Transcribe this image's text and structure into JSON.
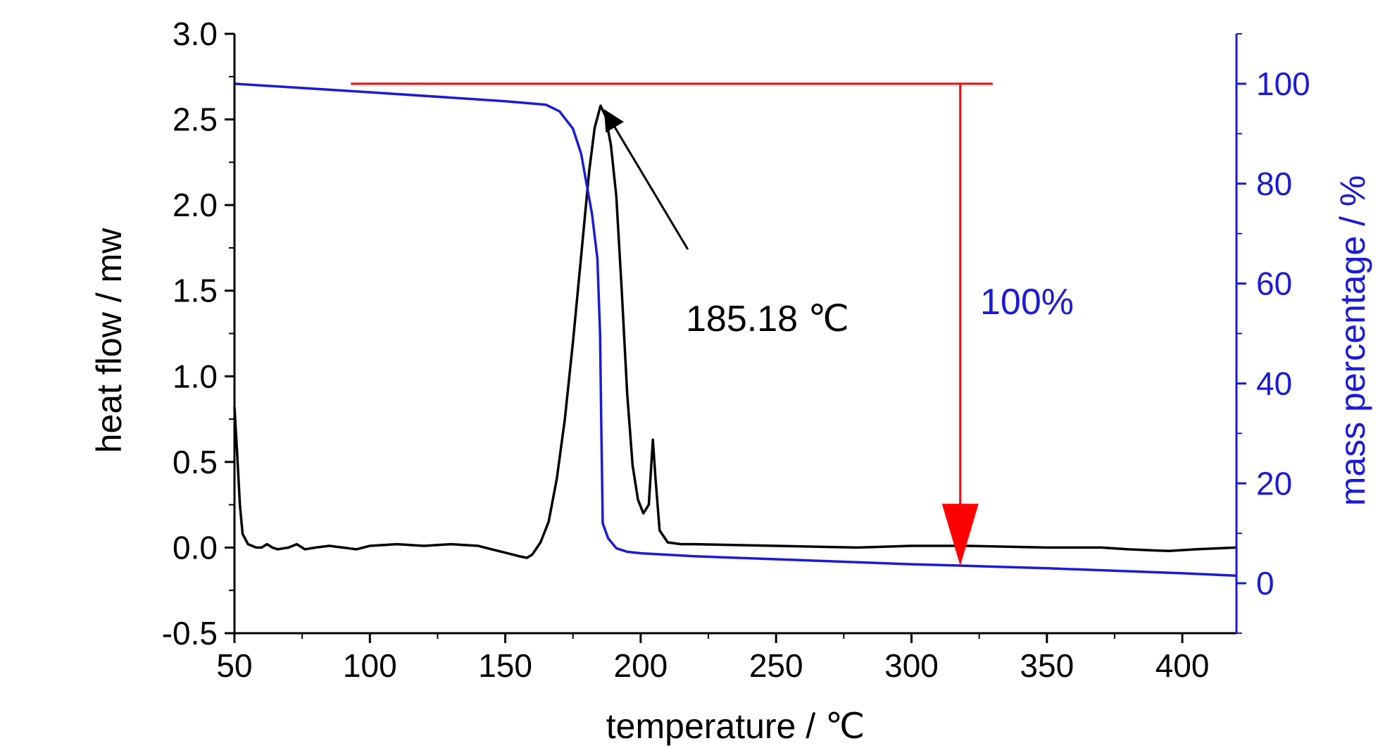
{
  "chart_data": {
    "type": "line",
    "xlabel": "temperature /  ℃",
    "ylabel": "heat flow / mw",
    "y2label": "mass percentage / %",
    "xlim": [
      50,
      420
    ],
    "ylim": [
      -0.5,
      3.0
    ],
    "y2lim": [
      -10,
      110
    ],
    "x_ticks": [
      50,
      100,
      150,
      200,
      250,
      300,
      350,
      400
    ],
    "x_tick_labels": [
      "50",
      "100",
      "150",
      "200",
      "250",
      "300",
      "350",
      "400"
    ],
    "y_ticks": [
      -0.5,
      0.0,
      0.5,
      1.0,
      1.5,
      2.0,
      2.5,
      3.0
    ],
    "y_tick_labels": [
      "-0.5",
      "0.0",
      "0.5",
      "1.0",
      "1.5",
      "2.0",
      "2.5",
      "3.0"
    ],
    "y2_ticks": [
      0,
      20,
      40,
      60,
      80,
      100
    ],
    "y2_tick_labels": [
      "0",
      "20",
      "40",
      "60",
      "80",
      "100"
    ],
    "grid": false,
    "series": [
      {
        "axis": "left",
        "color": "#000000",
        "points": [
          [
            50,
            0.82
          ],
          [
            51,
            0.55
          ],
          [
            52,
            0.25
          ],
          [
            53,
            0.08
          ],
          [
            55,
            0.02
          ],
          [
            58,
            0.0
          ],
          [
            60,
            0.0
          ],
          [
            62,
            0.02
          ],
          [
            64,
            0.0
          ],
          [
            66,
            -0.01
          ],
          [
            70,
            0.0
          ],
          [
            73,
            0.02
          ],
          [
            76,
            -0.01
          ],
          [
            80,
            0.0
          ],
          [
            85,
            0.01
          ],
          [
            90,
            0.0
          ],
          [
            95,
            -0.01
          ],
          [
            100,
            0.01
          ],
          [
            110,
            0.02
          ],
          [
            120,
            0.01
          ],
          [
            130,
            0.02
          ],
          [
            140,
            0.01
          ],
          [
            145,
            -0.01
          ],
          [
            150,
            -0.03
          ],
          [
            155,
            -0.05
          ],
          [
            158,
            -0.06
          ],
          [
            160,
            -0.04
          ],
          [
            163,
            0.03
          ],
          [
            166,
            0.15
          ],
          [
            169,
            0.4
          ],
          [
            172,
            0.75
          ],
          [
            175,
            1.2
          ],
          [
            178,
            1.7
          ],
          [
            181,
            2.2
          ],
          [
            183,
            2.45
          ],
          [
            185.18,
            2.58
          ],
          [
            187,
            2.52
          ],
          [
            189,
            2.35
          ],
          [
            191,
            2.05
          ],
          [
            193,
            1.5
          ],
          [
            195,
            0.9
          ],
          [
            197,
            0.48
          ],
          [
            199,
            0.28
          ],
          [
            201,
            0.2
          ],
          [
            203,
            0.25
          ],
          [
            204.5,
            0.63
          ],
          [
            205.5,
            0.4
          ],
          [
            207,
            0.1
          ],
          [
            210,
            0.03
          ],
          [
            215,
            0.02
          ],
          [
            220,
            0.02
          ],
          [
            250,
            0.01
          ],
          [
            280,
            0.0
          ],
          [
            300,
            0.01
          ],
          [
            320,
            0.01
          ],
          [
            350,
            0.0
          ],
          [
            370,
            0.0
          ],
          [
            380,
            -0.01
          ],
          [
            395,
            -0.02
          ],
          [
            405,
            -0.01
          ],
          [
            420,
            0.0
          ]
        ]
      },
      {
        "axis": "right",
        "color": "#1a1adb",
        "points": [
          [
            50,
            100.0
          ],
          [
            100,
            98.3
          ],
          [
            150,
            96.5
          ],
          [
            165,
            95.8
          ],
          [
            170,
            94.5
          ],
          [
            175,
            91.0
          ],
          [
            178,
            86.0
          ],
          [
            180,
            80.0
          ],
          [
            182,
            74.0
          ],
          [
            184,
            65.0
          ],
          [
            185,
            50.0
          ],
          [
            185.5,
            30.0
          ],
          [
            186,
            12.0
          ],
          [
            188,
            9.0
          ],
          [
            191,
            7.0
          ],
          [
            195,
            6.3
          ],
          [
            200,
            6.0
          ],
          [
            220,
            5.4
          ],
          [
            250,
            4.8
          ],
          [
            300,
            3.8
          ],
          [
            320,
            3.5
          ],
          [
            350,
            3.0
          ],
          [
            400,
            2.0
          ],
          [
            420,
            1.5
          ]
        ]
      }
    ],
    "annotations": {
      "peak_label": "185.18 ℃",
      "peak_point": [
        185.18,
        2.58
      ],
      "mass_loss_label": "100%",
      "mass_line_y2": 100,
      "mass_line_x": [
        93,
        330
      ],
      "mass_arrow_x": 318,
      "mass_arrow_end_y2": 3.5
    }
  }
}
